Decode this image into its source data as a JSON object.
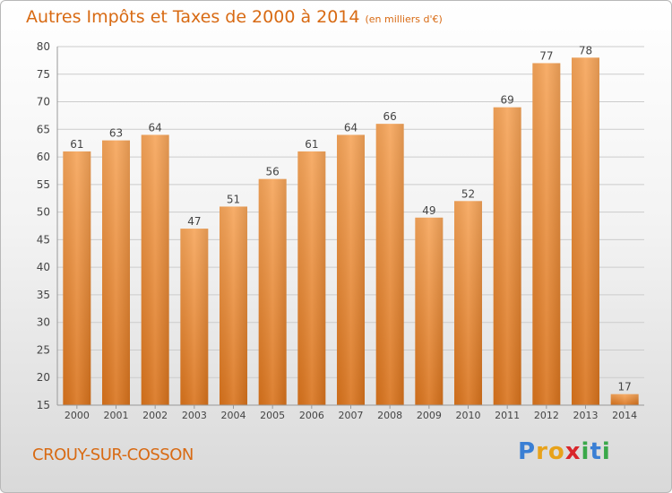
{
  "header": {
    "title": "Autres Impôts et Taxes de 2000 à 2014",
    "subtitle": "(en milliers d'€)"
  },
  "footer": {
    "place": "CROUY-SUR-COSSON",
    "brand_letters": [
      "P",
      "r",
      "o",
      "x",
      "i",
      "t",
      "i"
    ],
    "brand_colors": [
      "#3a7fd4",
      "#e8a21a",
      "#e8a21a",
      "#d9262b",
      "#3aa84a",
      "#3a7fd4",
      "#3aa84a"
    ]
  },
  "colors": {
    "title": "#d86a13",
    "bar_top": "#f6a55a",
    "bar_bottom": "#d9731c",
    "grid": "#cccccc",
    "tick_text": "#444444"
  },
  "chart_data": {
    "type": "bar",
    "categories": [
      "2000",
      "2001",
      "2002",
      "2003",
      "2004",
      "2005",
      "2006",
      "2007",
      "2008",
      "2009",
      "2010",
      "2011",
      "2012",
      "2013",
      "2014"
    ],
    "values": [
      61,
      63,
      64,
      47,
      51,
      56,
      61,
      64,
      66,
      49,
      52,
      69,
      77,
      78,
      17
    ],
    "title": "Autres Impôts et Taxes de 2000 à 2014",
    "ylim": [
      15,
      80
    ],
    "yticks": [
      15,
      20,
      25,
      30,
      35,
      40,
      45,
      50,
      55,
      60,
      65,
      70,
      75,
      80
    ],
    "grid": true,
    "data_labels": true
  }
}
